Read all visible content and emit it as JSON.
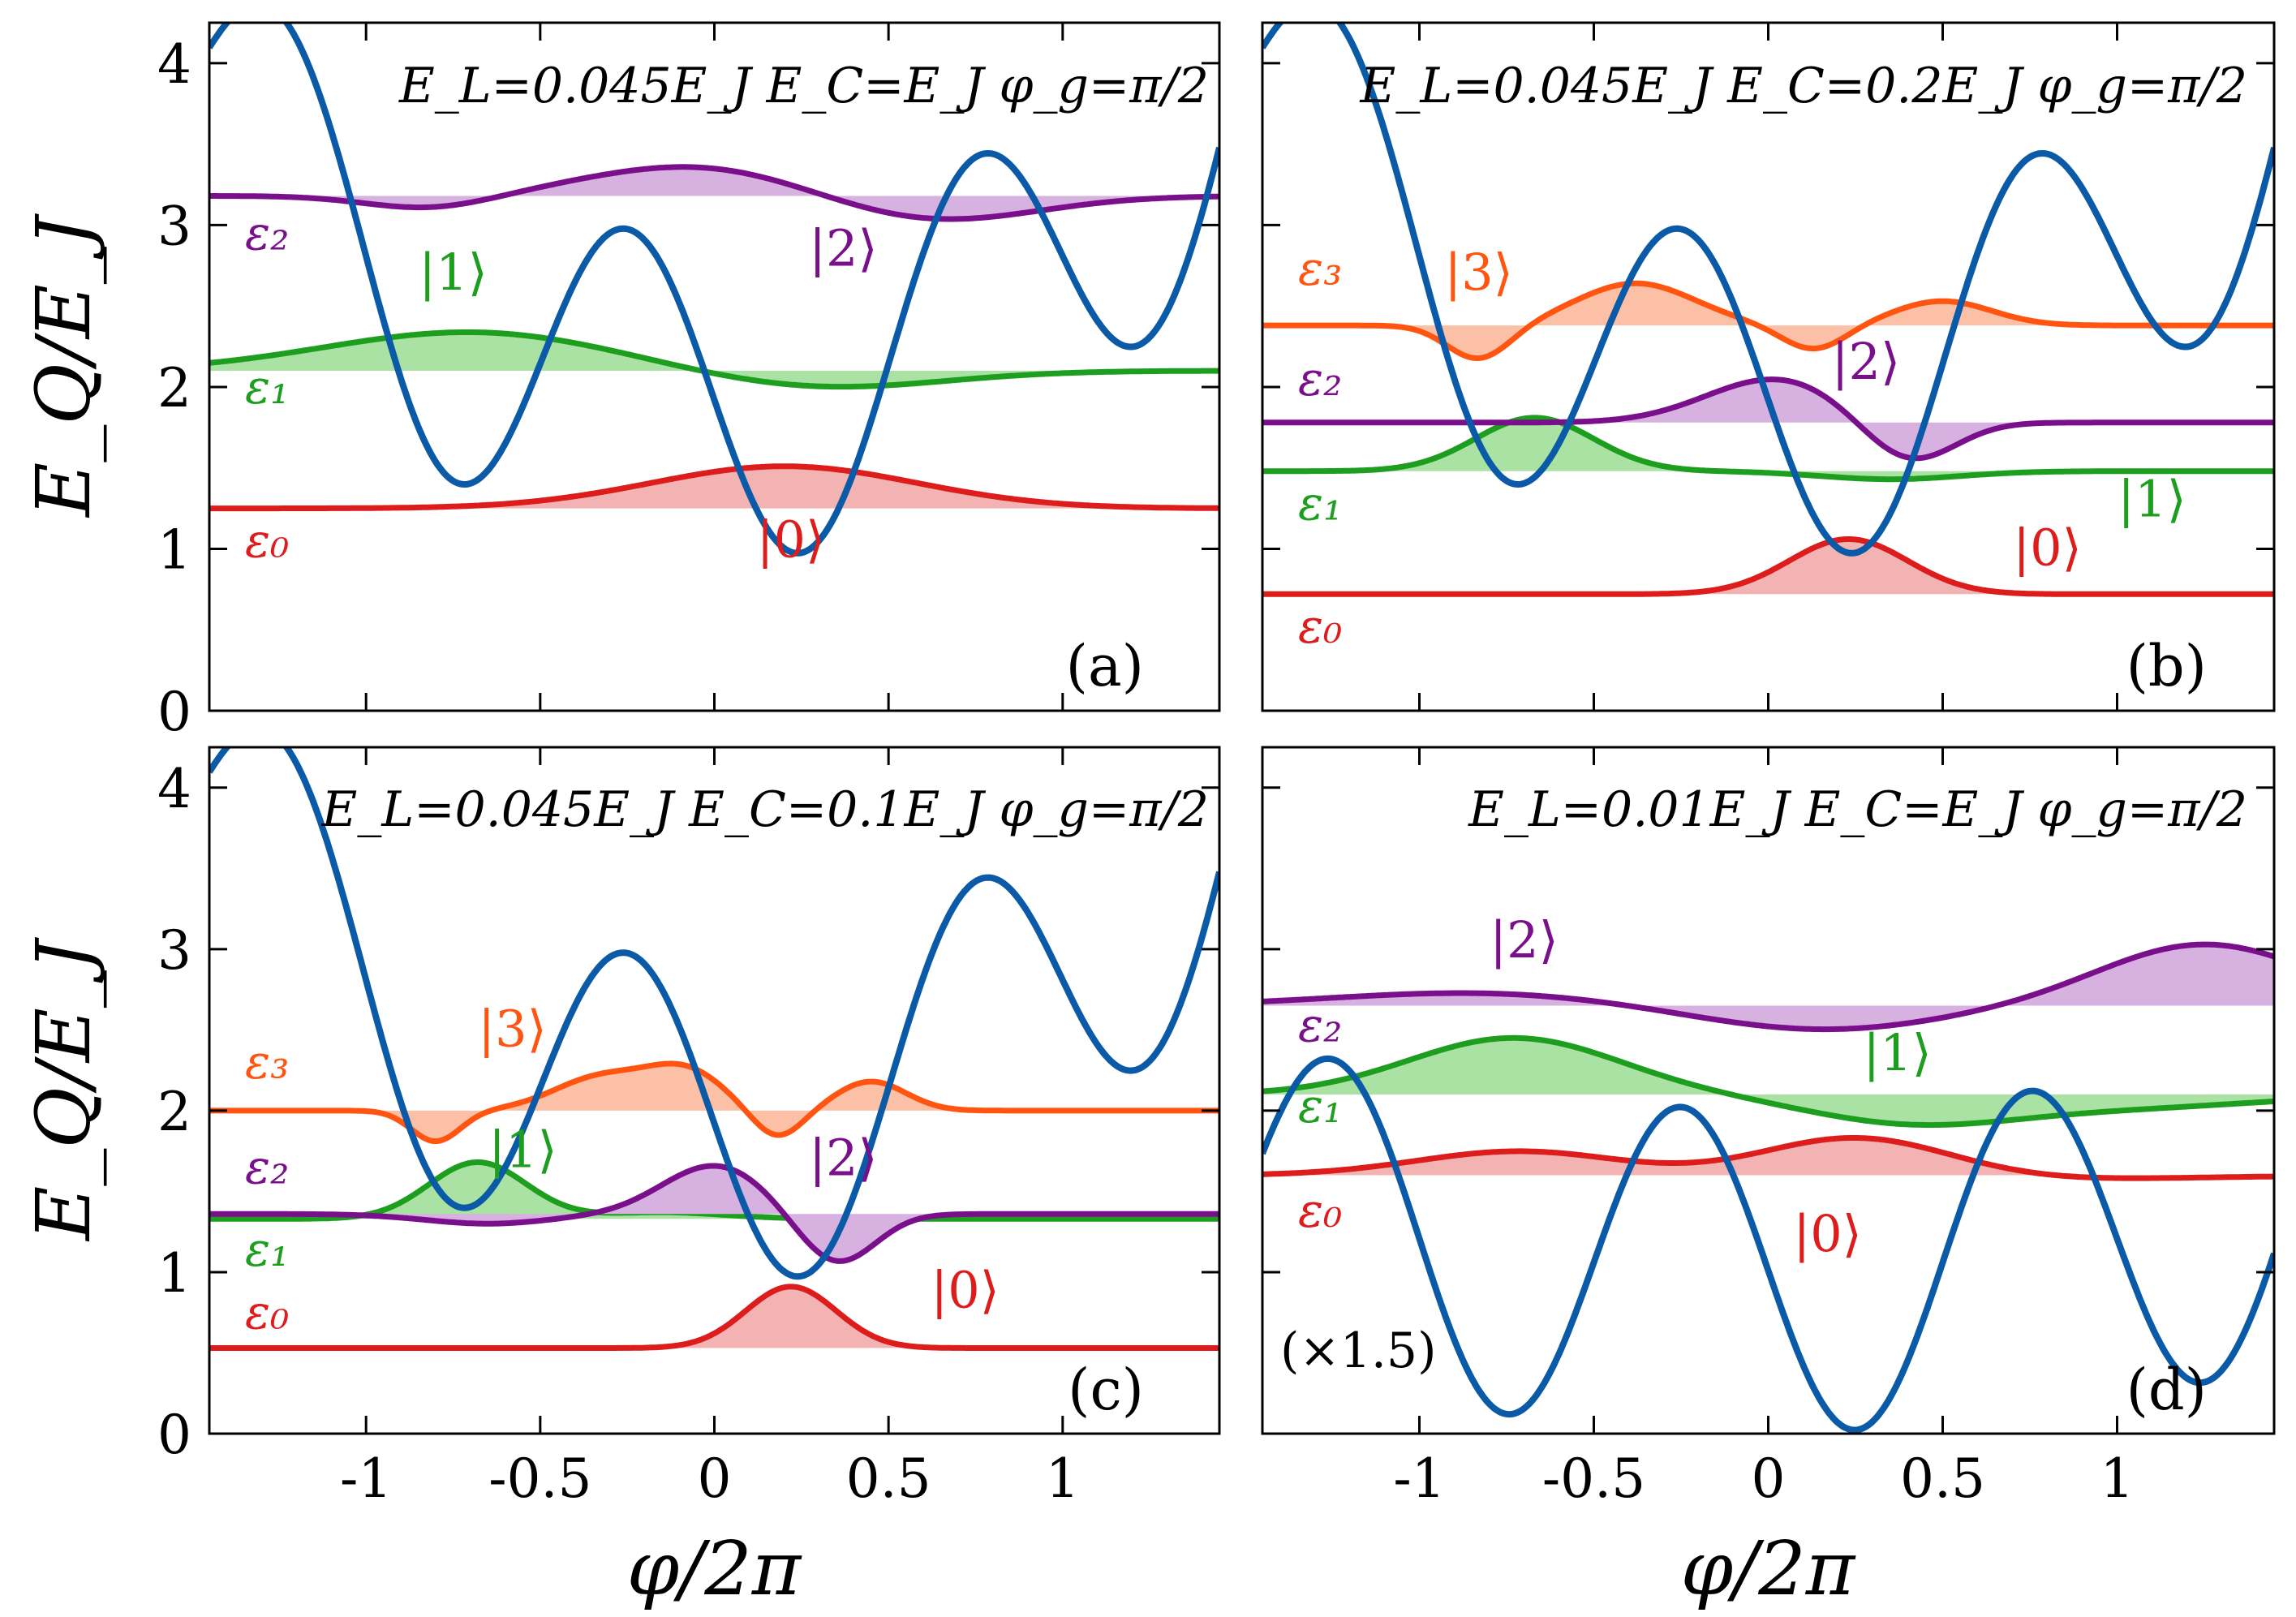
{
  "chart_data": [
    {
      "type": "line",
      "panel": "(a)",
      "title": "E_L=0.045E_J   E_C=E_J   φ_g=π/2",
      "xlabel": "φ/2π",
      "ylabel": "E_Q/E_J",
      "xlim": [
        -1.45,
        1.45
      ],
      "ylim": [
        0,
        4.25
      ],
      "yticks": [
        0,
        1,
        2,
        3,
        4
      ],
      "xticks": [
        -1,
        -0.5,
        0,
        0.5,
        1
      ],
      "potential": {
        "EL": 0.045,
        "offset": 0.92,
        "color": "#0b5aa8"
      },
      "levels": [
        {
          "state_label": "|0⟩",
          "energy_label": "ε₀",
          "energy": 1.25,
          "color": "#dd1c1c",
          "fill": "#f4b3b3",
          "peaks": [
            [
              0.2,
              0.26,
              0.38
            ]
          ],
          "label_pos": [
            0.22,
            0.95
          ],
          "elabel_y": 0.95
        },
        {
          "state_label": "|1⟩",
          "energy_label": "ε₁",
          "energy": 2.1,
          "color": "#1e9e1e",
          "fill": "#a9e2a3",
          "peaks": [
            [
              -0.7,
              0.24,
              0.42
            ],
            [
              0.3,
              -0.11,
              0.35
            ]
          ],
          "label_pos": [
            -0.75,
            2.6
          ],
          "elabel_y": 1.9
        },
        {
          "state_label": "|2⟩",
          "energy_label": "ε₂",
          "energy": 3.18,
          "color": "#7a0f8c",
          "fill": "#d7b1e0",
          "peaks": [
            [
              -0.82,
              -0.08,
              0.18
            ],
            [
              -0.05,
              0.19,
              0.32
            ],
            [
              0.62,
              -0.16,
              0.3
            ]
          ],
          "label_pos": [
            0.37,
            2.75
          ],
          "elabel_y": 2.85
        }
      ]
    },
    {
      "type": "line",
      "panel": "(b)",
      "title": "E_L=0.045E_J   E_C=0.2E_J   φ_g=π/2",
      "xlabel": "φ/2π",
      "ylabel": "E_Q/E_J",
      "xlim": [
        -1.45,
        1.45
      ],
      "ylim": [
        0,
        4.25
      ],
      "yticks": [
        0,
        1,
        2,
        3,
        4
      ],
      "xticks": [
        -1,
        -0.5,
        0,
        0.5,
        1
      ],
      "potential": {
        "EL": 0.045,
        "offset": 0.92,
        "color": "#0b5aa8"
      },
      "levels": [
        {
          "state_label": "|0⟩",
          "energy_label": "ε₀",
          "energy": 0.72,
          "color": "#dd1c1c",
          "fill": "#f4b3b3",
          "peaks": [
            [
              0.23,
              0.34,
              0.17
            ]
          ],
          "label_pos": [
            0.8,
            0.9
          ],
          "elabel_y": 0.42
        },
        {
          "state_label": "|1⟩",
          "energy_label": "ε₁",
          "energy": 1.48,
          "color": "#1e9e1e",
          "fill": "#a9e2a3",
          "peaks": [
            [
              -0.67,
              0.33,
              0.17
            ],
            [
              0.35,
              -0.05,
              0.2
            ]
          ],
          "label_pos": [
            1.1,
            1.2
          ],
          "elabel_y": 1.18
        },
        {
          "state_label": "|2⟩",
          "energy_label": "ε₂",
          "energy": 1.78,
          "color": "#7a0f8c",
          "fill": "#d7b1e0",
          "peaks": [
            [
              0.02,
              0.27,
              0.2
            ],
            [
              0.4,
              -0.26,
              0.13
            ]
          ],
          "label_pos": [
            0.28,
            2.05
          ],
          "elabel_y": 1.95
        },
        {
          "state_label": "|3⟩",
          "energy_label": "ε₃",
          "energy": 2.38,
          "color": "#ff5511",
          "fill": "#fbc0a5",
          "peaks": [
            [
              -0.83,
              -0.21,
              0.09
            ],
            [
              -0.38,
              0.26,
              0.17
            ],
            [
              0.13,
              -0.15,
              0.09
            ],
            [
              0.5,
              0.15,
              0.14
            ]
          ],
          "label_pos": [
            -0.83,
            2.6
          ],
          "elabel_y": 2.63
        }
      ]
    },
    {
      "type": "line",
      "panel": "(c)",
      "title": "E_L=0.045E_J   E_C=0.1E_J   φ_g=π/2",
      "xlabel": "φ/2π",
      "ylabel": "E_Q/E_J",
      "xlim": [
        -1.45,
        1.45
      ],
      "ylim": [
        0,
        4.25
      ],
      "yticks": [
        0,
        1,
        2,
        3,
        4
      ],
      "xticks": [
        -1,
        -0.5,
        0,
        0.5,
        1
      ],
      "potential": {
        "EL": 0.045,
        "offset": 0.92,
        "color": "#0b5aa8"
      },
      "levels": [
        {
          "state_label": "|0⟩",
          "energy_label": "ε₀",
          "energy": 0.53,
          "color": "#dd1c1c",
          "fill": "#f4b3b3",
          "peaks": [
            [
              0.22,
              0.38,
              0.13
            ]
          ],
          "label_pos": [
            0.72,
            0.78
          ],
          "elabel_y": 0.65
        },
        {
          "state_label": "|1⟩",
          "energy_label": "ε₁",
          "energy": 1.33,
          "color": "#1e9e1e",
          "fill": "#a9e2a3",
          "peaks": [
            [
              -0.68,
              0.35,
              0.14
            ],
            [
              -0.15,
              0.04,
              0.18
            ]
          ],
          "label_pos": [
            -0.55,
            1.65
          ],
          "elabel_y": 1.04
        },
        {
          "state_label": "|2⟩",
          "energy_label": "ε₂",
          "energy": 1.36,
          "color": "#7a0f8c",
          "fill": "#d7b1e0",
          "peaks": [
            [
              -0.65,
              -0.06,
              0.18
            ],
            [
              0,
              0.3,
              0.15
            ],
            [
              0.35,
              -0.31,
              0.11
            ]
          ],
          "label_pos": [
            0.37,
            1.6
          ],
          "elabel_y": 1.55
        },
        {
          "state_label": "|3⟩",
          "energy_label": "ε₃",
          "energy": 2.0,
          "color": "#ff5511",
          "fill": "#fbc0a5",
          "peaks": [
            [
              -0.8,
              -0.19,
              0.07
            ],
            [
              -0.32,
              0.21,
              0.14
            ],
            [
              -0.08,
              0.23,
              0.11
            ],
            [
              0.18,
              -0.17,
              0.07
            ],
            [
              0.45,
              0.18,
              0.1
            ]
          ],
          "label_pos": [
            -0.58,
            2.4
          ],
          "elabel_y": 2.2
        }
      ]
    },
    {
      "type": "line",
      "panel": "(d)",
      "title": "E_L=0.01E_J   E_C=E_J   φ_g=π/2",
      "xlabel": "φ/2π",
      "ylabel": "E_Q/E_J",
      "xlim": [
        -1.45,
        1.45
      ],
      "ylim": [
        0,
        4.25
      ],
      "yticks": [
        0,
        1,
        2,
        3,
        4
      ],
      "xticks": [
        -1,
        -0.5,
        0,
        0.5,
        1
      ],
      "scale_note": "(×1.5)",
      "potential": {
        "EL": 0.01,
        "offset": 0.01,
        "color": "#0b5aa8"
      },
      "levels": [
        {
          "state_label": "|0⟩",
          "energy_label": "ε₀",
          "energy": 1.6,
          "color": "#dd1c1c",
          "fill": "#f4b3b3",
          "peaks": [
            [
              -0.7,
              0.16,
              0.3
            ],
            [
              0.25,
              0.28,
              0.28
            ],
            [
              0.3,
              -0.05,
              0.6
            ]
          ],
          "label_pos": [
            0.17,
            1.13
          ],
          "elabel_y": 1.28
        },
        {
          "state_label": "|1⟩",
          "energy_label": "ε₁",
          "energy": 2.1,
          "color": "#1e9e1e",
          "fill": "#a9e2a3",
          "peaks": [
            [
              -0.73,
              0.35,
              0.3
            ],
            [
              0.4,
              -0.16,
              0.3
            ],
            [
              1.0,
              -0.08,
              0.4
            ]
          ],
          "label_pos": [
            0.37,
            2.25
          ],
          "elabel_y": 1.93
        },
        {
          "state_label": "|2⟩",
          "energy_label": "ε₂",
          "energy": 2.65,
          "color": "#7a0f8c",
          "fill": "#d7b1e0",
          "peaks": [
            [
              -0.85,
              0.08,
              0.4
            ],
            [
              0.15,
              -0.15,
              0.35
            ],
            [
              1.25,
              0.38,
              0.3
            ]
          ],
          "label_pos": [
            -0.7,
            2.95
          ],
          "elabel_y": 2.43
        }
      ]
    }
  ]
}
